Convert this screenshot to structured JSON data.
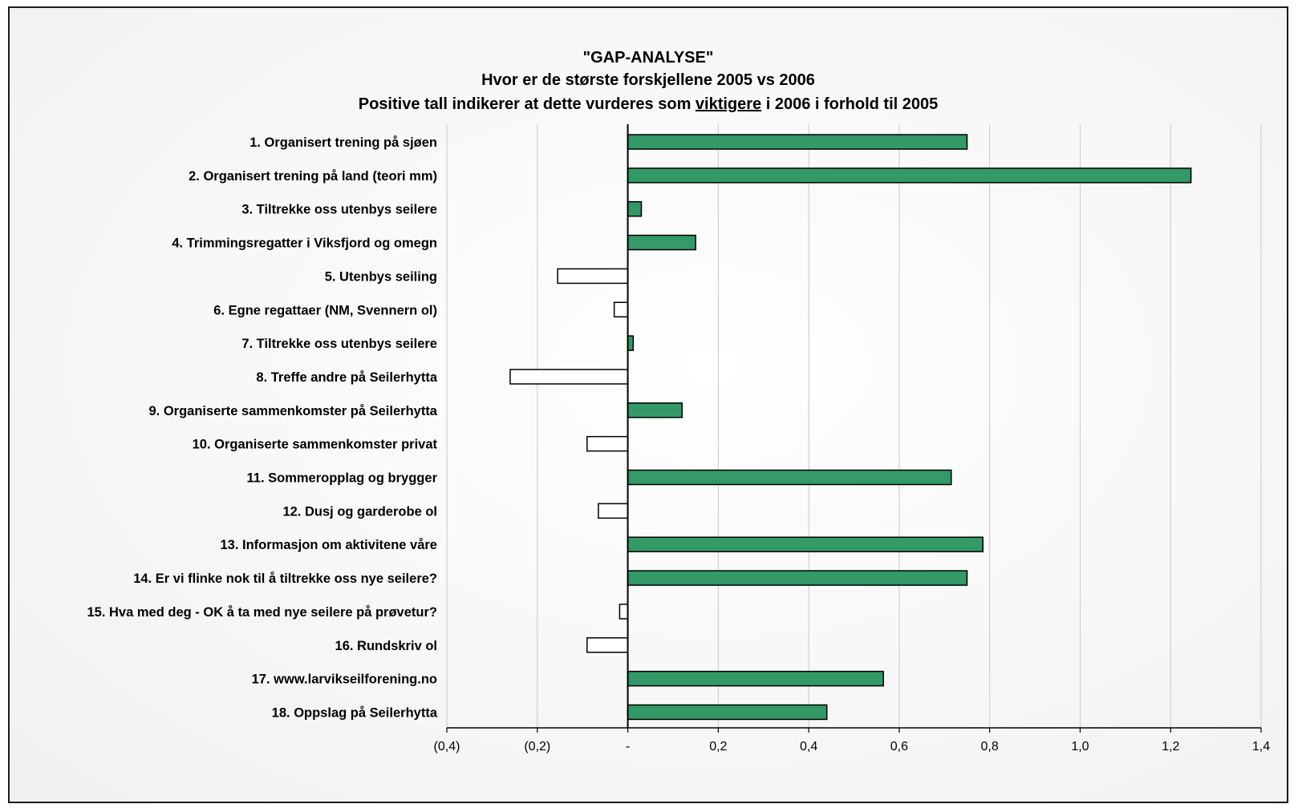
{
  "chart_data": {
    "type": "bar",
    "orientation": "horizontal",
    "title_line1": "\"GAP-ANALYSE\"",
    "title_line2": "Hvor er de største forskjellene  2005 vs 2006",
    "title_line3_pre": "Positive tall indikerer at dette vurderes som ",
    "title_line3_underlined": "viktigere",
    "title_line3_post": " i 2006 i forhold til 2005",
    "categories": [
      "1. Organisert trening på sjøen",
      "2. Organisert trening på land (teori mm)",
      "3. Tiltrekke oss utenbys seilere",
      "4. Trimmingsregatter i Viksfjord og omegn",
      "5. Utenbys seiling",
      "6. Egne regattaer (NM, Svennern ol)",
      "7. Tiltrekke oss utenbys seilere",
      "8. Treffe andre på Seilerhytta",
      "9. Organiserte sammenkomster på Seilerhytta",
      "10. Organiserte sammenkomster privat",
      "11. Sommeropplag og brygger",
      "12. Dusj og garderobe ol",
      "13. Informasjon om aktivitene våre",
      "14. Er vi flinke nok til å tiltrekke oss nye seilere?",
      "15. Hva med deg - OK å ta med nye seilere på prøvetur?",
      "16. Rundskriv ol",
      "17. www.larvikseilforening.no",
      "18. Oppslag på Seilerhytta"
    ],
    "values": [
      0.75,
      1.245,
      0.03,
      0.15,
      -0.155,
      -0.03,
      0.012,
      -0.26,
      0.12,
      -0.09,
      0.715,
      -0.065,
      0.785,
      0.75,
      -0.018,
      -0.09,
      0.565,
      0.44
    ],
    "xlim": [
      -0.4,
      1.4
    ],
    "xticks": [
      -0.4,
      -0.2,
      0,
      0.2,
      0.4,
      0.6,
      0.8,
      1.0,
      1.2,
      1.4
    ],
    "xtick_labels": [
      "(0,4)",
      "(0,2)",
      "-",
      "0,2",
      "0,4",
      "0,6",
      "0,8",
      "1,0",
      "1,2",
      "1,4"
    ],
    "grid": "vertical",
    "colors": {
      "positive_fill": "#339966",
      "negative_fill": "#ffffff",
      "bar_stroke": "#000000",
      "grid": "#c8c8c8",
      "axis": "#000000"
    }
  }
}
